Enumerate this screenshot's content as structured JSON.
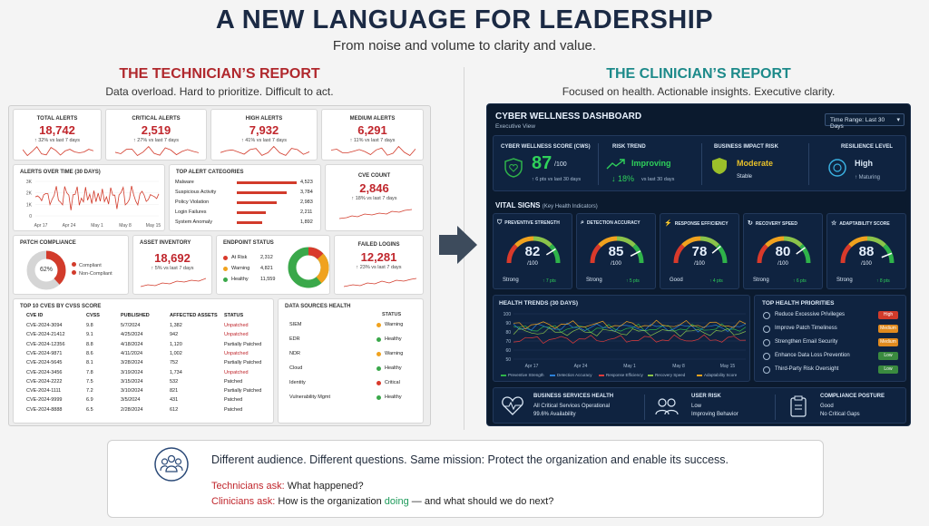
{
  "header": {
    "title": "A NEW LANGUAGE FOR LEADERSHIP",
    "subtitle": "From noise and volume to clarity and value."
  },
  "left": {
    "title": "THE TECHNICIAN’S REPORT",
    "subtitle": "Data overload. Hard to prioritize. Difficult to act.",
    "kpis": [
      {
        "label": "TOTAL ALERTS",
        "value": "18,742",
        "trend": "↑ 32% vs last 7 days"
      },
      {
        "label": "CRITICAL ALERTS",
        "value": "2,519",
        "trend": "↑ 27% vs last 7 days"
      },
      {
        "label": "HIGH ALERTS",
        "value": "7,932",
        "trend": "↑ 41% vs last 7 days"
      },
      {
        "label": "MEDIUM ALERTS",
        "value": "6,291",
        "trend": "↑ 11% vs last 7 days"
      }
    ],
    "alerts_over_time": {
      "title": "ALERTS OVER TIME (30 DAYS)",
      "yticks": [
        "3K",
        "2K",
        "1K",
        "0"
      ],
      "xticks": [
        "Apr 17",
        "Apr 24",
        "May 1",
        "May 8",
        "May 15"
      ]
    },
    "top_categories": {
      "title": "TOP ALERT CATEGORIES",
      "items": [
        {
          "name": "Malware",
          "value": "4,523",
          "pct": 1.0
        },
        {
          "name": "Suspicious Activity",
          "value": "3,784",
          "pct": 0.84
        },
        {
          "name": "Policy Violation",
          "value": "2,983",
          "pct": 0.66
        },
        {
          "name": "Login Failures",
          "value": "2,211",
          "pct": 0.49
        },
        {
          "name": "System Anomaly",
          "value": "1,892",
          "pct": 0.42
        }
      ]
    },
    "cve_count": {
      "title": "CVE COUNT",
      "value": "2,846",
      "trend": "↑ 18% vs last 7 days"
    },
    "patch": {
      "title": "PATCH COMPLIANCE",
      "pct_label": "62%",
      "pct": 0.62,
      "legend": [
        "Compliant",
        "Non-Compliant"
      ]
    },
    "asset": {
      "title": "ASSET INVENTORY",
      "value": "18,692",
      "trend": "↑ 5% vs last 7 days"
    },
    "endpoint": {
      "title": "ENDPOINT STATUS",
      "items": [
        {
          "name": "At Risk",
          "value": "2,312",
          "color": "#d93a2b"
        },
        {
          "name": "Warning",
          "value": "4,821",
          "color": "#f0a21e"
        },
        {
          "name": "Healthy",
          "value": "11,559",
          "color": "#3aa84a"
        }
      ]
    },
    "failed": {
      "title": "FAILED LOGINS",
      "value": "12,281",
      "trend": "↑ 23% vs last 7 days"
    },
    "cves": {
      "title": "TOP 10 CVES BY CVSS SCORE",
      "columns": [
        "CVE ID",
        "CVSS",
        "PUBLISHED",
        "AFFECTED ASSETS",
        "STATUS"
      ],
      "rows": [
        [
          "CVE-2024-3094",
          "9.8",
          "5/7/2024",
          "1,382",
          "Unpatched"
        ],
        [
          "CVE-2024-21412",
          "9.1",
          "4/25/2024",
          "942",
          "Unpatched"
        ],
        [
          "CVE-2024-12356",
          "8.8",
          "4/18/2024",
          "1,120",
          "Partially Patched"
        ],
        [
          "CVE-2024-9871",
          "8.6",
          "4/11/2024",
          "1,002",
          "Unpatched"
        ],
        [
          "CVE-2024-5645",
          "8.1",
          "3/28/2024",
          "752",
          "Partially Patched"
        ],
        [
          "CVE-2024-3456",
          "7.8",
          "3/19/2024",
          "1,734",
          "Unpatched"
        ],
        [
          "CVE-2024-2222",
          "7.5",
          "3/15/2024",
          "532",
          "Patched"
        ],
        [
          "CVE-2024-1111",
          "7.2",
          "3/10/2024",
          "821",
          "Partially Patched"
        ],
        [
          "CVE-2024-9999",
          "6.9",
          "3/5/2024",
          "431",
          "Patched"
        ],
        [
          "CVE-2024-8888",
          "6.5",
          "2/28/2024",
          "612",
          "Patched"
        ]
      ]
    },
    "sources": {
      "title": "DATA SOURCES HEALTH",
      "status_header": "STATUS",
      "items": [
        {
          "name": "SIEM",
          "status": "Warning",
          "color": "#f0a21e"
        },
        {
          "name": "EDR",
          "status": "Healthy",
          "color": "#3aa84a"
        },
        {
          "name": "NDR",
          "status": "Warning",
          "color": "#f0a21e"
        },
        {
          "name": "Cloud",
          "status": "Healthy",
          "color": "#3aa84a"
        },
        {
          "name": "Identity",
          "status": "Critical",
          "color": "#d93a2b"
        },
        {
          "name": "Vulnerability Mgmt",
          "status": "Healthy",
          "color": "#3aa84a"
        }
      ]
    }
  },
  "right": {
    "title": "THE CLINICIAN’S REPORT",
    "subtitle": "Focused on health. Actionable insights. Executive clarity.",
    "dash_title": "CYBER WELLNESS DASHBOARD",
    "dash_sub": "Executive View",
    "time_range": "Time Range: Last 30 Days",
    "cws": {
      "label": "CYBER WELLNESS SCORE (CWS)",
      "value": "87",
      "unit": "/100",
      "trend": "↑ 6 pts vs last 30 days"
    },
    "risk": {
      "label": "RISK TREND",
      "value": "Improving",
      "trend": "↓ 18%",
      "trend_suffix": "vs last 30 days"
    },
    "impact": {
      "label": "BUSINESS IMPACT RISK",
      "value": "Moderate",
      "sub": "Stable"
    },
    "resilience": {
      "label": "RESILIENCE LEVEL",
      "value": "High",
      "sub": "↑ Maturing"
    },
    "vital_title": "VITAL SIGNS",
    "vital_sub": "(Key Health Indicators)",
    "gauges": [
      {
        "label": "PREVENTIVE STRENGTH",
        "value": "82",
        "unit": "/100",
        "status": "Strong",
        "delta": "↑ 7 pts",
        "level": 0.82
      },
      {
        "label": "DETECTION ACCURACY",
        "value": "85",
        "unit": "/100",
        "status": "Strong",
        "delta": "↑ 5 pts",
        "level": 0.85
      },
      {
        "label": "RESPONSE EFFICIENCY",
        "value": "78",
        "unit": "/100",
        "status": "Good",
        "delta": "↑ 4 pts",
        "level": 0.78
      },
      {
        "label": "RECOVERY SPEED",
        "value": "80",
        "unit": "/100",
        "status": "Strong",
        "delta": "↑ 6 pts",
        "level": 0.8
      },
      {
        "label": "ADAPTABILITY SCORE",
        "value": "88",
        "unit": "/100",
        "status": "Strong",
        "delta": "↑ 8 pts",
        "level": 0.88
      }
    ],
    "trends": {
      "title": "HEALTH TRENDS (30 DAYS)",
      "yticks": [
        "100",
        "90",
        "80",
        "70",
        "60",
        "50"
      ],
      "xticks": [
        "Apr 17",
        "Apr 24",
        "May 1",
        "May 8",
        "May 15"
      ],
      "legend": [
        {
          "name": "Preventive Strength",
          "color": "#2fb34a"
        },
        {
          "name": "Detection Accuracy",
          "color": "#2a7fd8"
        },
        {
          "name": "Response Efficiency",
          "color": "#e03b3b"
        },
        {
          "name": "Recovery Speed",
          "color": "#8bc34a"
        },
        {
          "name": "Adaptability Score",
          "color": "#f0a21e"
        }
      ]
    },
    "priorities": {
      "title": "TOP HEALTH PRIORITIES",
      "items": [
        {
          "name": "Reduce Excessive Privileges",
          "tag": "High",
          "color": "#d23b2b"
        },
        {
          "name": "Improve Patch Timeliness",
          "tag": "Medium",
          "color": "#e08a1e"
        },
        {
          "name": "Strengthen Email Security",
          "tag": "Medium",
          "color": "#e08a1e"
        },
        {
          "name": "Enhance Data Loss Prevention",
          "tag": "Low",
          "color": "#3a8a3f"
        },
        {
          "name": "Third-Party Risk Oversight",
          "tag": "Low",
          "color": "#3a8a3f"
        }
      ]
    },
    "footer": [
      {
        "label": "BUSINESS SERVICES HEALTH",
        "l1": "All Critical Services Operational",
        "l2": "99.6% Availability"
      },
      {
        "label": "USER RISK",
        "l1": "Low",
        "l2": "Improving Behavior"
      },
      {
        "label": "COMPLIANCE POSTURE",
        "l1": "Good",
        "l2": "No Critical Gaps"
      }
    ]
  },
  "bottom": {
    "headline": "Different audience. Different questions. Same mission: Protect the organization and enable its success.",
    "tech_label": "Technicians ask:",
    "tech_q": "What happened?",
    "clin_label": "Clinicians ask:",
    "clin_q1": "How is the organization",
    "clin_doing": "doing",
    "clin_q2": "— and what should we do next?"
  },
  "colors": {
    "red": "#c0262c",
    "teal": "#1d8a8a",
    "dark": "#0b1a2e",
    "green": "#2fb34a"
  }
}
